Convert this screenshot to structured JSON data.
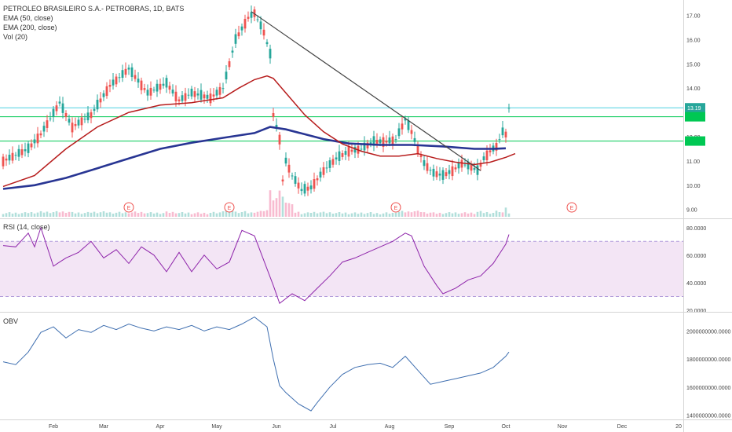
{
  "chart_data": [
    {
      "type": "candlestick",
      "title": "PETROLEO BRASILEIRO S.A.- PETROBRAS, 1D, BATS",
      "indicators": [
        "EMA (50, close)",
        "EMA (200, close)",
        "Vol (20)"
      ],
      "ylim": [
        8.7,
        17.5
      ],
      "yticks": [
        "17.00",
        "16.00",
        "15.00",
        "14.00",
        "13.00",
        "12.00",
        "11.00",
        "10.00",
        "9.00"
      ],
      "last_price": "13.19",
      "horizontal_lines": [
        13.19,
        12.82,
        11.82
      ],
      "price_path": [
        [
          0,
          11.0
        ],
        [
          8,
          11.5
        ],
        [
          12,
          12.1
        ],
        [
          18,
          13.4
        ],
        [
          22,
          12.4
        ],
        [
          28,
          12.9
        ],
        [
          34,
          14.1
        ],
        [
          40,
          14.8
        ],
        [
          46,
          13.8
        ],
        [
          52,
          14.2
        ],
        [
          56,
          13.5
        ],
        [
          60,
          13.8
        ],
        [
          66,
          13.6
        ],
        [
          70,
          14.0
        ],
        [
          74,
          16.0
        ],
        [
          78,
          16.9
        ],
        [
          80,
          17.1
        ],
        [
          83,
          16.3
        ],
        [
          85,
          15.4
        ],
        [
          86,
          12.9
        ],
        [
          88,
          11.9
        ],
        [
          89,
          10.2
        ],
        [
          90,
          11.0
        ],
        [
          92,
          10.4
        ],
        [
          95,
          9.8
        ],
        [
          98,
          9.9
        ],
        [
          102,
          10.6
        ],
        [
          106,
          11.1
        ],
        [
          110,
          11.4
        ],
        [
          114,
          11.5
        ],
        [
          118,
          11.8
        ],
        [
          122,
          11.8
        ],
        [
          125,
          11.9
        ],
        [
          128,
          12.7
        ],
        [
          130,
          12.2
        ],
        [
          132,
          11.5
        ],
        [
          134,
          10.9
        ],
        [
          137,
          10.5
        ],
        [
          140,
          10.4
        ],
        [
          143,
          10.6
        ],
        [
          146,
          10.9
        ],
        [
          148,
          10.8
        ],
        [
          151,
          10.6
        ],
        [
          153,
          11.1
        ],
        [
          155,
          11.4
        ],
        [
          157,
          11.6
        ],
        [
          159,
          12.2
        ],
        [
          160,
          12.1
        ],
        [
          161,
          13.19
        ]
      ],
      "ema50": [
        [
          0,
          9.95
        ],
        [
          10,
          10.4
        ],
        [
          20,
          11.5
        ],
        [
          30,
          12.4
        ],
        [
          40,
          13.0
        ],
        [
          50,
          13.3
        ],
        [
          60,
          13.4
        ],
        [
          70,
          13.6
        ],
        [
          75,
          14.0
        ],
        [
          80,
          14.35
        ],
        [
          84,
          14.5
        ],
        [
          86,
          14.4
        ],
        [
          90,
          13.8
        ],
        [
          96,
          12.9
        ],
        [
          102,
          12.2
        ],
        [
          108,
          11.7
        ],
        [
          114,
          11.4
        ],
        [
          120,
          11.2
        ],
        [
          126,
          11.2
        ],
        [
          132,
          11.3
        ],
        [
          138,
          11.1
        ],
        [
          144,
          10.95
        ],
        [
          150,
          10.85
        ],
        [
          155,
          10.95
        ],
        [
          160,
          11.15
        ],
        [
          163,
          11.3
        ]
      ],
      "ema200": [
        [
          0,
          9.85
        ],
        [
          10,
          10.0
        ],
        [
          20,
          10.3
        ],
        [
          30,
          10.7
        ],
        [
          40,
          11.1
        ],
        [
          50,
          11.5
        ],
        [
          60,
          11.75
        ],
        [
          70,
          11.95
        ],
        [
          80,
          12.15
        ],
        [
          85,
          12.4
        ],
        [
          90,
          12.3
        ],
        [
          96,
          12.1
        ],
        [
          102,
          11.9
        ],
        [
          110,
          11.72
        ],
        [
          120,
          11.66
        ],
        [
          130,
          11.66
        ],
        [
          140,
          11.6
        ],
        [
          150,
          11.5
        ],
        [
          156,
          11.5
        ],
        [
          160,
          11.52
        ]
      ],
      "trendline": [
        [
          79,
          17.15
        ],
        [
          152,
          10.6
        ]
      ],
      "earnings_markers": [
        "E",
        "E",
        "E",
        "E"
      ]
    },
    {
      "type": "line",
      "title": "RSI (14, close)",
      "ylim": [
        20,
        85
      ],
      "yticks": [
        "80.0000",
        "60.0000",
        "40.0000",
        "20.0000"
      ],
      "band": [
        30,
        70
      ],
      "x": [
        0,
        4,
        8,
        10,
        12,
        16,
        18,
        20,
        24,
        28,
        32,
        36,
        40,
        44,
        48,
        52,
        56,
        60,
        64,
        68,
        72,
        76,
        80,
        84,
        86,
        88,
        92,
        96,
        100,
        104,
        108,
        112,
        116,
        120,
        124,
        128,
        130,
        134,
        138,
        140,
        144,
        148,
        152,
        156,
        160,
        161
      ],
      "values": [
        67,
        66,
        76,
        66,
        80,
        52,
        55,
        58,
        62,
        70,
        58,
        64,
        54,
        66,
        60,
        48,
        62,
        48,
        60,
        50,
        55,
        78,
        74,
        50,
        38,
        25,
        32,
        27,
        36,
        45,
        55,
        58,
        62,
        66,
        70,
        76,
        74,
        52,
        38,
        32,
        36,
        42,
        45,
        54,
        68,
        75
      ]
    },
    {
      "type": "line",
      "title": "OBV",
      "ylim": [
        1380000000,
        2120000000
      ],
      "yticks": [
        "2000000000.0000",
        "1800000000.0000",
        "1600000000.0000",
        "1400000000.0000"
      ],
      "x": [
        0,
        4,
        8,
        12,
        16,
        20,
        24,
        28,
        32,
        36,
        40,
        44,
        48,
        52,
        56,
        60,
        64,
        68,
        72,
        76,
        80,
        84,
        86,
        88,
        90,
        94,
        98,
        100,
        104,
        108,
        112,
        116,
        120,
        124,
        128,
        132,
        136,
        140,
        144,
        148,
        152,
        156,
        160,
        161
      ],
      "values": [
        1780000000,
        1760000000,
        1850000000,
        1990000000,
        2030000000,
        1950000000,
        2010000000,
        1990000000,
        2040000000,
        2010000000,
        2050000000,
        2020000000,
        2000000000,
        2030000000,
        2010000000,
        2040000000,
        2000000000,
        2030000000,
        2010000000,
        2050000000,
        2100000000,
        2030000000,
        1800000000,
        1610000000,
        1560000000,
        1480000000,
        1430000000,
        1490000000,
        1600000000,
        1690000000,
        1740000000,
        1760000000,
        1770000000,
        1740000000,
        1820000000,
        1720000000,
        1620000000,
        1640000000,
        1660000000,
        1680000000,
        1700000000,
        1740000000,
        1820000000,
        1850000000
      ]
    }
  ],
  "x_axis": {
    "labels": [
      "Feb",
      "Mar",
      "Apr",
      "May",
      "Jun",
      "Jul",
      "Aug",
      "Sep",
      "Oct",
      "Nov",
      "Dec",
      "20"
    ],
    "label_days": [
      16,
      32,
      50,
      68,
      87,
      105,
      123,
      142,
      160,
      178,
      197,
      215
    ]
  },
  "colors": {
    "up": "#26a69a",
    "down": "#ef5350",
    "ema50": "#b71c1c",
    "ema200": "#283593",
    "hline": "#00c853",
    "cyan_line": "#4dd0e1",
    "trendline": "#424242",
    "rsi": "#8e24aa",
    "rsi_band": "#f3e5f5",
    "obv": "#3f6fb0",
    "last_price_bg": "#26a69a"
  }
}
